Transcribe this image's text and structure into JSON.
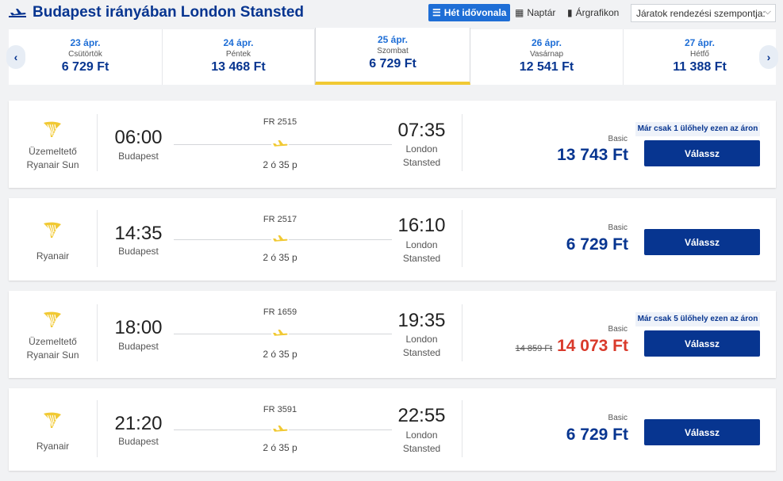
{
  "header": {
    "title": "Budapest irányában London Stansted",
    "views": [
      {
        "label": "Hét idővonala",
        "icon": "list-icon",
        "active": true
      },
      {
        "label": "Naptár",
        "icon": "calendar-icon",
        "active": false
      },
      {
        "label": "Árgrafikon",
        "icon": "bar-chart-icon",
        "active": false
      }
    ],
    "sort_label": "Járatok rendezési szempontja:"
  },
  "dates": [
    {
      "date": "23 ápr.",
      "weekday": "Csütörtök",
      "price": "6 729 Ft",
      "selected": false
    },
    {
      "date": "24 ápr.",
      "weekday": "Péntek",
      "price": "13 468 Ft",
      "selected": false
    },
    {
      "date": "25 ápr.",
      "weekday": "Szombat",
      "price": "6 729 Ft",
      "selected": true
    },
    {
      "date": "26 ápr.",
      "weekday": "Vasárnap",
      "price": "12 541 Ft",
      "selected": false
    },
    {
      "date": "27 ápr.",
      "weekday": "Hétfő",
      "price": "11 388 Ft",
      "selected": false
    }
  ],
  "flights": [
    {
      "operator_lines": [
        "Üzemeltető",
        "Ryanair Sun"
      ],
      "departure_time": "06:00",
      "departure_city": "Budapest",
      "flight_number": "FR 2515",
      "duration": "2 ó 35 p",
      "arrival_time": "07:35",
      "arrival_city_lines": [
        "London",
        "Stansted"
      ],
      "fare": "Basic",
      "price": "13 743 Ft",
      "old_price": "",
      "price_red": false,
      "badge": "Már csak 1 ülőhely ezen az áron",
      "button": "Válassz"
    },
    {
      "operator_lines": [
        "Ryanair"
      ],
      "departure_time": "14:35",
      "departure_city": "Budapest",
      "flight_number": "FR 2517",
      "duration": "2 ó 35 p",
      "arrival_time": "16:10",
      "arrival_city_lines": [
        "London",
        "Stansted"
      ],
      "fare": "Basic",
      "price": "6 729 Ft",
      "old_price": "",
      "price_red": false,
      "badge": "",
      "button": "Válassz"
    },
    {
      "operator_lines": [
        "Üzemeltető",
        "Ryanair Sun"
      ],
      "departure_time": "18:00",
      "departure_city": "Budapest",
      "flight_number": "FR 1659",
      "duration": "2 ó 35 p",
      "arrival_time": "19:35",
      "arrival_city_lines": [
        "London",
        "Stansted"
      ],
      "fare": "Basic",
      "price": "14 073 Ft",
      "old_price": "14 859 Ft",
      "price_red": true,
      "badge": "Már csak 5 ülőhely ezen az áron",
      "button": "Válassz"
    },
    {
      "operator_lines": [
        "Ryanair"
      ],
      "departure_time": "21:20",
      "departure_city": "Budapest",
      "flight_number": "FR 3591",
      "duration": "2 ó 35 p",
      "arrival_time": "22:55",
      "arrival_city_lines": [
        "London",
        "Stansted"
      ],
      "fare": "Basic",
      "price": "6 729 Ft",
      "old_price": "",
      "price_red": false,
      "badge": "",
      "button": "Válassz"
    }
  ],
  "colors": {
    "brand_blue": "#073590",
    "link_blue": "#1e6ed6",
    "accent_yellow": "#f1c933",
    "price_red": "#d93a2b"
  }
}
